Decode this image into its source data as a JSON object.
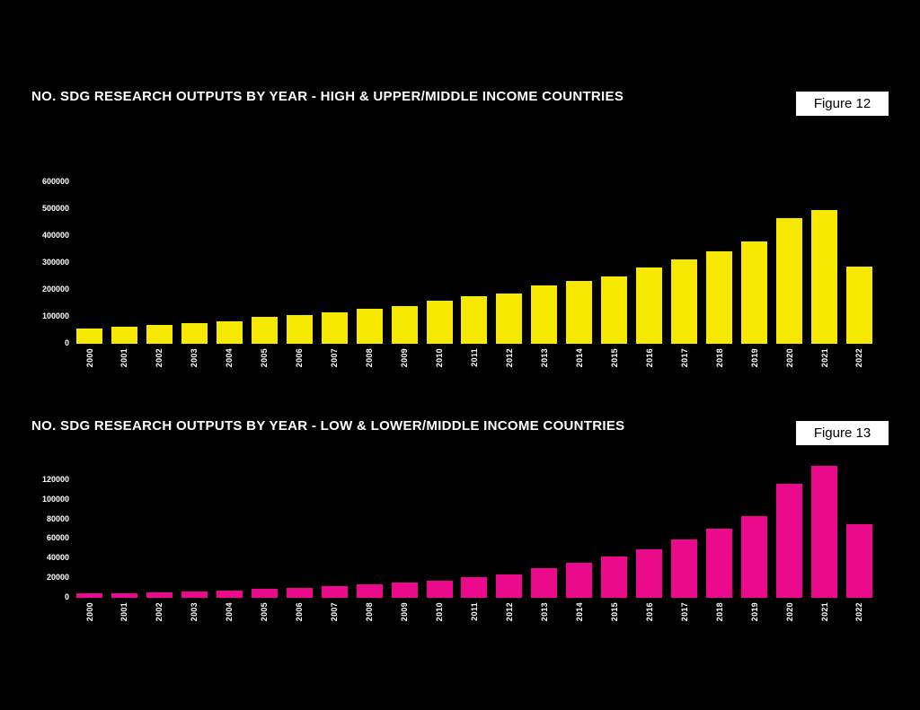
{
  "page": {
    "background_color": "#000000",
    "text_color": "#FFFFFF"
  },
  "chart_data": [
    {
      "type": "bar",
      "title": "NO. SDG RESEARCH OUTPUTS BY YEAR - HIGH & UPPER/MIDDLE INCOME COUNTRIES",
      "figure_label": "Figure 12",
      "bar_color": "#F7E800",
      "xlabel": "",
      "ylabel": "",
      "grid": false,
      "legend_position": "none",
      "ylim": [
        0,
        620000
      ],
      "yticks": [
        0,
        100000,
        200000,
        300000,
        400000,
        500000,
        600000
      ],
      "categories": [
        "2000",
        "2001",
        "2002",
        "2003",
        "2004",
        "2005",
        "2006",
        "2007",
        "2008",
        "2009",
        "2010",
        "2011",
        "2012",
        "2013",
        "2014",
        "2015",
        "2016",
        "2017",
        "2018",
        "2019",
        "2020",
        "2021",
        "2022"
      ],
      "values": [
        57000,
        63000,
        70000,
        76000,
        82000,
        100000,
        107000,
        118000,
        129000,
        140000,
        160000,
        177000,
        188000,
        215000,
        232000,
        249000,
        284000,
        313000,
        345000,
        380000,
        467000,
        495000,
        288000
      ]
    },
    {
      "type": "bar",
      "title": "NO. SDG RESEARCH OUTPUTS BY YEAR - LOW & LOWER/MIDDLE INCOME COUNTRIES",
      "figure_label": "Figure 13",
      "bar_color": "#EB0A8C",
      "xlabel": "",
      "ylabel": "",
      "grid": false,
      "legend_position": "none",
      "ylim": [
        0,
        139000
      ],
      "yticks": [
        0,
        20000,
        40000,
        60000,
        80000,
        100000,
        120000
      ],
      "categories": [
        "2000",
        "2001",
        "2002",
        "2003",
        "2004",
        "2005",
        "2006",
        "2007",
        "2008",
        "2009",
        "2010",
        "2011",
        "2012",
        "2013",
        "2014",
        "2015",
        "2016",
        "2017",
        "2018",
        "2019",
        "2020",
        "2021",
        "2022"
      ],
      "values": [
        4500,
        5000,
        5500,
        6300,
        7500,
        8800,
        10000,
        11500,
        13500,
        15500,
        17500,
        21000,
        24000,
        30000,
        36000,
        42000,
        49000,
        59000,
        70000,
        83000,
        116000,
        134000,
        75000
      ]
    }
  ]
}
